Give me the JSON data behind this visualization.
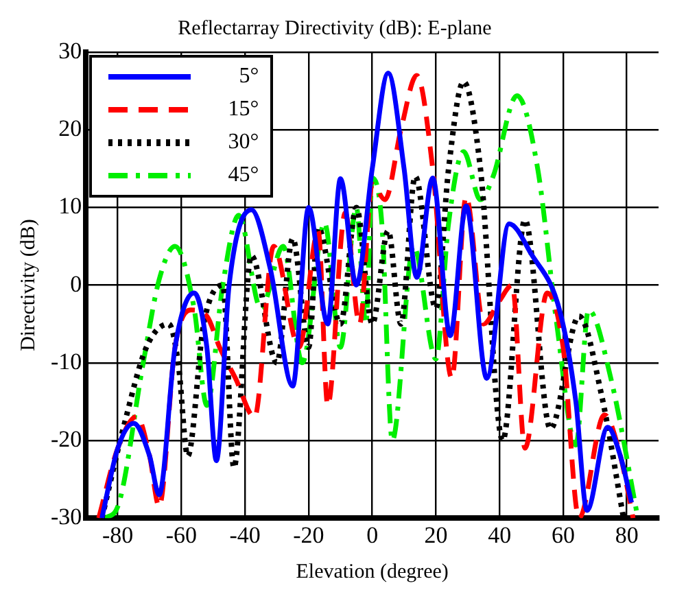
{
  "chart_data": {
    "type": "line",
    "title": "Reflectarray Directivity (dB): E-plane",
    "xlabel": "Elevation (degree)",
    "ylabel": "Directivity (dB)",
    "xlim": [
      -90,
      90
    ],
    "xticks": [
      -80,
      -60,
      -40,
      -20,
      0,
      20,
      40,
      60,
      80
    ],
    "ylim": [
      -30,
      30
    ],
    "yticks": [
      -30,
      -20,
      -10,
      0,
      10,
      20,
      30
    ],
    "grid": true,
    "legend": "top left",
    "marker": "none",
    "series": [
      {
        "name": "5°",
        "color": "#0000ff",
        "line_style": "solid",
        "x": [
          -85,
          -80,
          -75,
          -70,
          -67,
          -62,
          -56,
          -52,
          -49,
          -45,
          -38,
          -32,
          -25,
          -20,
          -14,
          -10,
          -5,
          0,
          5,
          10,
          14,
          19,
          24.5,
          29.5,
          36,
          43,
          50,
          59,
          64,
          67.5,
          74,
          78,
          81.5
        ],
        "values": [
          -30,
          -21,
          -17.8,
          -22,
          -27,
          -8,
          -1,
          -8,
          -22.6,
          0,
          9.7,
          2,
          -13,
          10,
          -5,
          13.7,
          0,
          15,
          27.3,
          15,
          1,
          13.8,
          -6.5,
          10.2,
          -12,
          7.9,
          4,
          -3.4,
          -15,
          -29,
          -18.3,
          -22,
          -28
        ]
      },
      {
        "name": "15°",
        "color": "#ff0000",
        "line_style": "dashed",
        "x": [
          -86,
          -80,
          -74,
          -70,
          -67,
          -62,
          -57,
          -52,
          -48,
          -43,
          -37,
          -31,
          -23,
          -17,
          -14,
          -8.5,
          -4,
          0,
          4,
          9,
          14,
          19,
          25,
          29.5,
          35,
          40,
          44,
          48,
          55,
          60,
          65,
          73,
          78,
          82
        ],
        "values": [
          -30,
          -21,
          -16.9,
          -22,
          -28.5,
          -8,
          -3.2,
          -4,
          -8,
          -12,
          -17,
          5,
          -8,
          7,
          -15.5,
          9.3,
          -5,
          13,
          11,
          20,
          27,
          15,
          -12,
          11.4,
          -5,
          -2,
          0,
          -21,
          -1,
          -8,
          -30,
          -16.7,
          -22,
          -30
        ]
      },
      {
        "name": "30°",
        "color": "#000000",
        "line_style": "dotted",
        "x": [
          -85,
          -78,
          -71,
          -64,
          -61,
          -58,
          -53,
          -47,
          -43.5,
          -38,
          -30,
          -25,
          -20,
          -17,
          -10,
          -5,
          0,
          5,
          9,
          13.5,
          20,
          24,
          28.7,
          34,
          41,
          48,
          56,
          65,
          72,
          79
        ],
        "values": [
          -30,
          -18,
          -8,
          -5,
          -10,
          -22,
          -5,
          0,
          -23.5,
          3.8,
          -10,
          6,
          -8,
          7.4,
          -5,
          10,
          -5,
          7,
          -5,
          14,
          -3,
          15,
          26.2,
          15,
          -20,
          8.4,
          -18.5,
          -4,
          -14,
          -30
        ]
      },
      {
        "name": "45°",
        "color": "#00ee00",
        "line_style": "dashdot",
        "x": [
          -84,
          -80,
          -72,
          -67,
          -62,
          -56,
          -52,
          -47,
          -42,
          -35,
          -28,
          -22,
          -15,
          -10,
          -5,
          -2,
          0,
          3,
          6.3,
          13,
          20,
          24,
          28.7,
          34,
          38,
          45.5,
          52,
          58,
          64,
          68,
          75,
          83.5
        ],
        "values": [
          -30,
          -28.5,
          -10,
          0.7,
          5,
          -3,
          -15.5,
          0,
          9,
          -3,
          5,
          -10,
          8,
          -8,
          10,
          -5,
          13.8,
          8,
          -20,
          5,
          -9.5,
          8,
          17.2,
          11,
          14,
          24.4,
          15,
          -5,
          -20.6,
          -3.2,
          -12,
          -30
        ]
      }
    ]
  }
}
